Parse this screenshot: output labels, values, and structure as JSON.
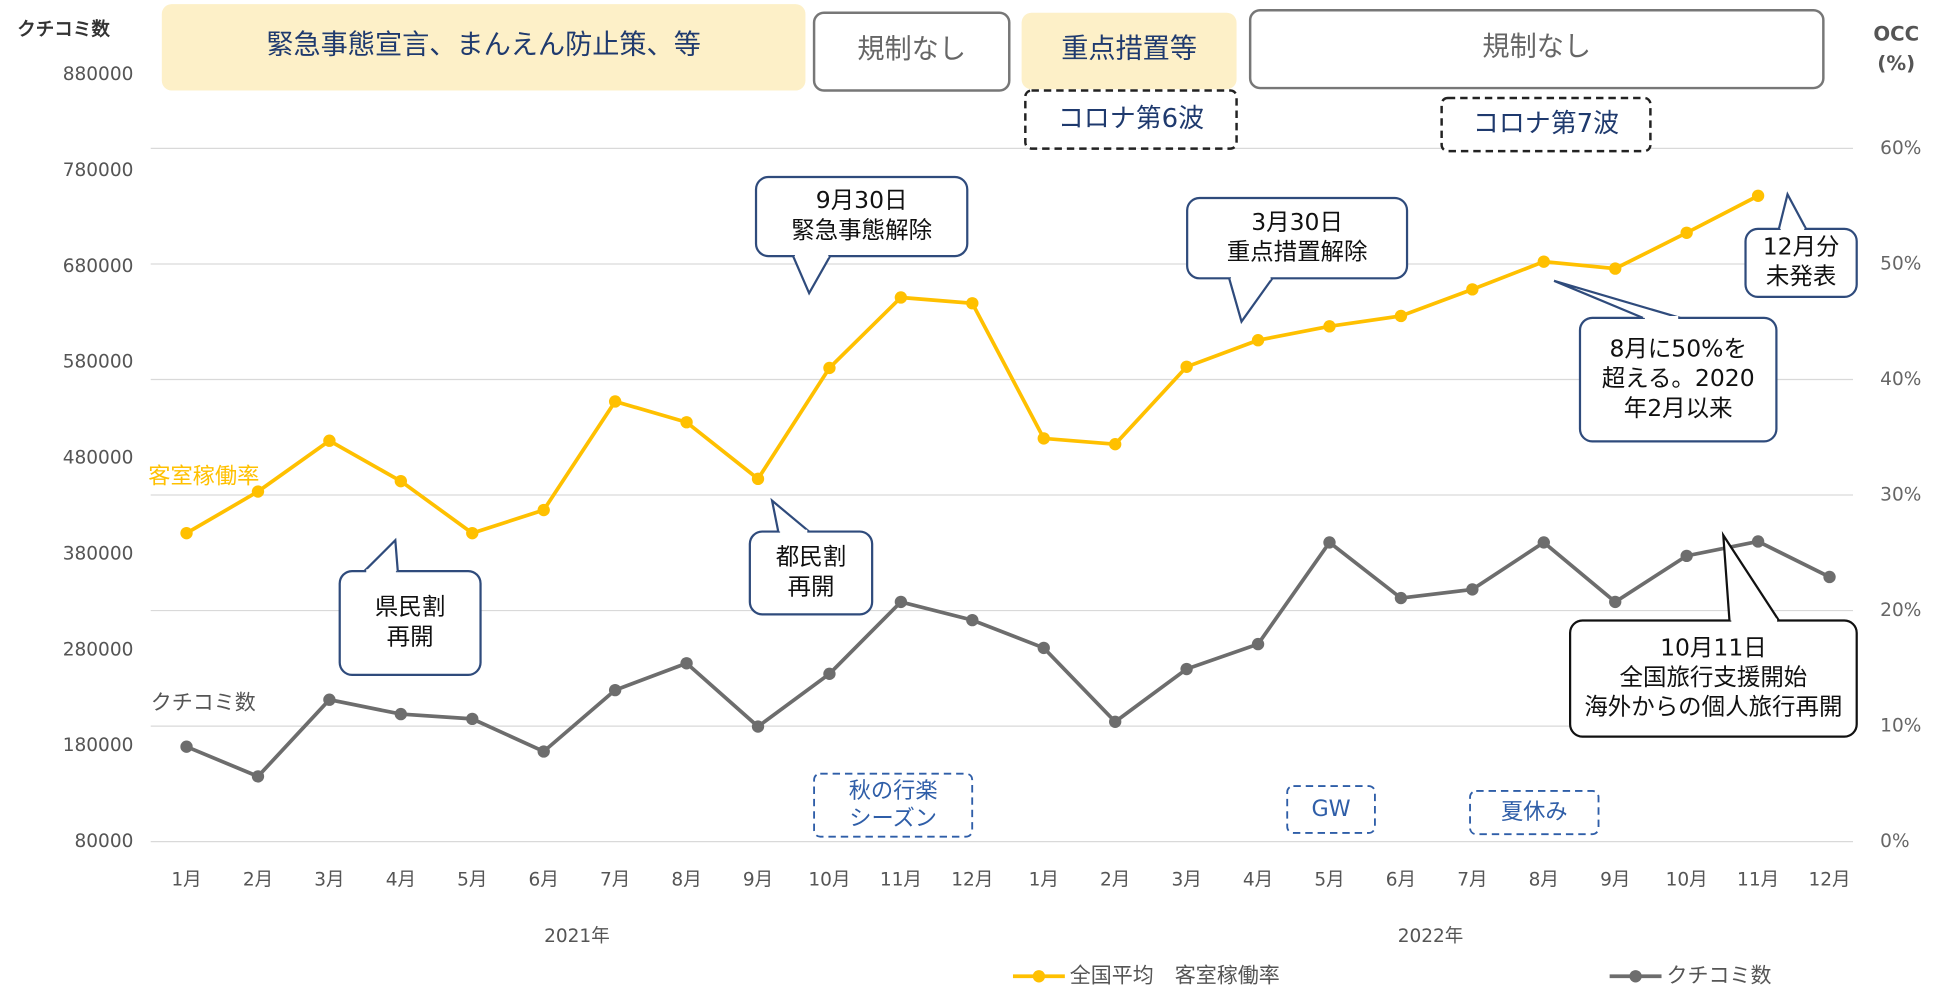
{
  "chart_data": {
    "type": "line",
    "y_axis_label": "クチコミ数",
    "y2_axis_label": [
      "OCC",
      "(%)"
    ],
    "categories": [
      "1月",
      "2月",
      "3月",
      "4月",
      "5月",
      "6月",
      "7月",
      "8月",
      "9月",
      "10月",
      "11月",
      "12月",
      "1月",
      "2月",
      "3月",
      "4月",
      "5月",
      "6月",
      "7月",
      "8月",
      "9月",
      "10月",
      "11月",
      "12月"
    ],
    "year_labels": [
      "2021年",
      "2022年"
    ],
    "series": [
      {
        "name": "クチコミ数",
        "color": "#6d6d6d",
        "axis": "y",
        "values": [
          179000,
          148000,
          228000,
          213000,
          208000,
          174000,
          238000,
          266000,
          200000,
          255000,
          330000,
          311000,
          282000,
          205000,
          260000,
          286000,
          392000,
          334000,
          343000,
          392000,
          330000,
          378000,
          393000,
          356000
        ]
      },
      {
        "name": "全国平均　客室稼働率",
        "color": "#ffc000",
        "axis": "y2",
        "values": [
          26.7,
          30.3,
          34.7,
          31.2,
          26.7,
          28.7,
          38.1,
          36.3,
          31.4,
          41.0,
          47.1,
          46.6,
          34.9,
          34.4,
          41.1,
          43.4,
          44.6,
          45.5,
          47.8,
          50.2,
          49.6,
          52.7,
          55.9,
          null
        ]
      }
    ],
    "series_labels": [
      "クチコミ数",
      "客室稼働率"
    ],
    "ylim": [
      80000,
      880000
    ],
    "yticks": [
      80000,
      180000,
      280000,
      380000,
      480000,
      580000,
      680000,
      780000,
      880000
    ],
    "y2lim": [
      0,
      66.4
    ],
    "y2ticks": [
      {
        "value": 0,
        "label": "0%"
      },
      {
        "value": 10,
        "label": "10%"
      },
      {
        "value": 20,
        "label": "20%"
      },
      {
        "value": 30,
        "label": "30%"
      },
      {
        "value": 40,
        "label": "40%"
      },
      {
        "value": 50,
        "label": "50%"
      },
      {
        "value": 60,
        "label": "60%"
      }
    ],
    "grid": "y2",
    "legend": "bottom",
    "periods": [
      "緊急事態宣言、まんえん防止策、等",
      "規制なし",
      "重点措置等",
      "規制なし"
    ],
    "waves": [
      "コロナ第6波",
      "コロナ第7波"
    ],
    "seasons": [
      [
        "秋の行楽",
        "シーズン"
      ],
      [
        "GW"
      ],
      [
        "夏休み"
      ]
    ],
    "annotations": [
      [
        "9月30日",
        "緊急事態解除"
      ],
      [
        "3月30日",
        "重点措置解除"
      ],
      [
        "12月分",
        "未発表"
      ],
      [
        "8月に50%を",
        "超える。2020",
        "年2月以来"
      ],
      [
        "県民割",
        "再開"
      ],
      [
        "都民割",
        "再開"
      ],
      [
        "10月11日",
        "全国旅行支援開始",
        "海外からの個人旅行再開"
      ]
    ]
  }
}
